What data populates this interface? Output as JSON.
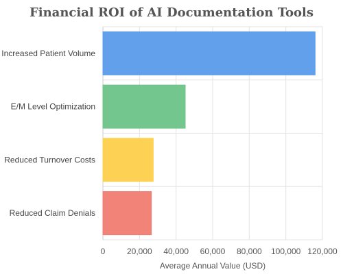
{
  "chart_data": {
    "type": "bar",
    "orientation": "horizontal",
    "title": "Financial ROI of AI Documentation Tools",
    "xlabel": "Average Annual Value (USD)",
    "ylabel": "",
    "xlim": [
      0,
      120000
    ],
    "xticks": [
      0,
      20000,
      40000,
      60000,
      80000,
      100000,
      120000
    ],
    "xtick_labels": [
      "0",
      "20,000",
      "40,000",
      "60,000",
      "80,000",
      "100,000",
      "120,000"
    ],
    "categories": [
      "Increased Patient Volume",
      "E/M Level Optimization",
      "Reduced Turnover Costs",
      "Reduced Claim Denials"
    ],
    "values": [
      116000,
      45000,
      27500,
      26500
    ],
    "colors": [
      "#5a9bea",
      "#6cc387",
      "#fdd04b",
      "#f07c72"
    ],
    "grid": true,
    "legend": "none"
  }
}
